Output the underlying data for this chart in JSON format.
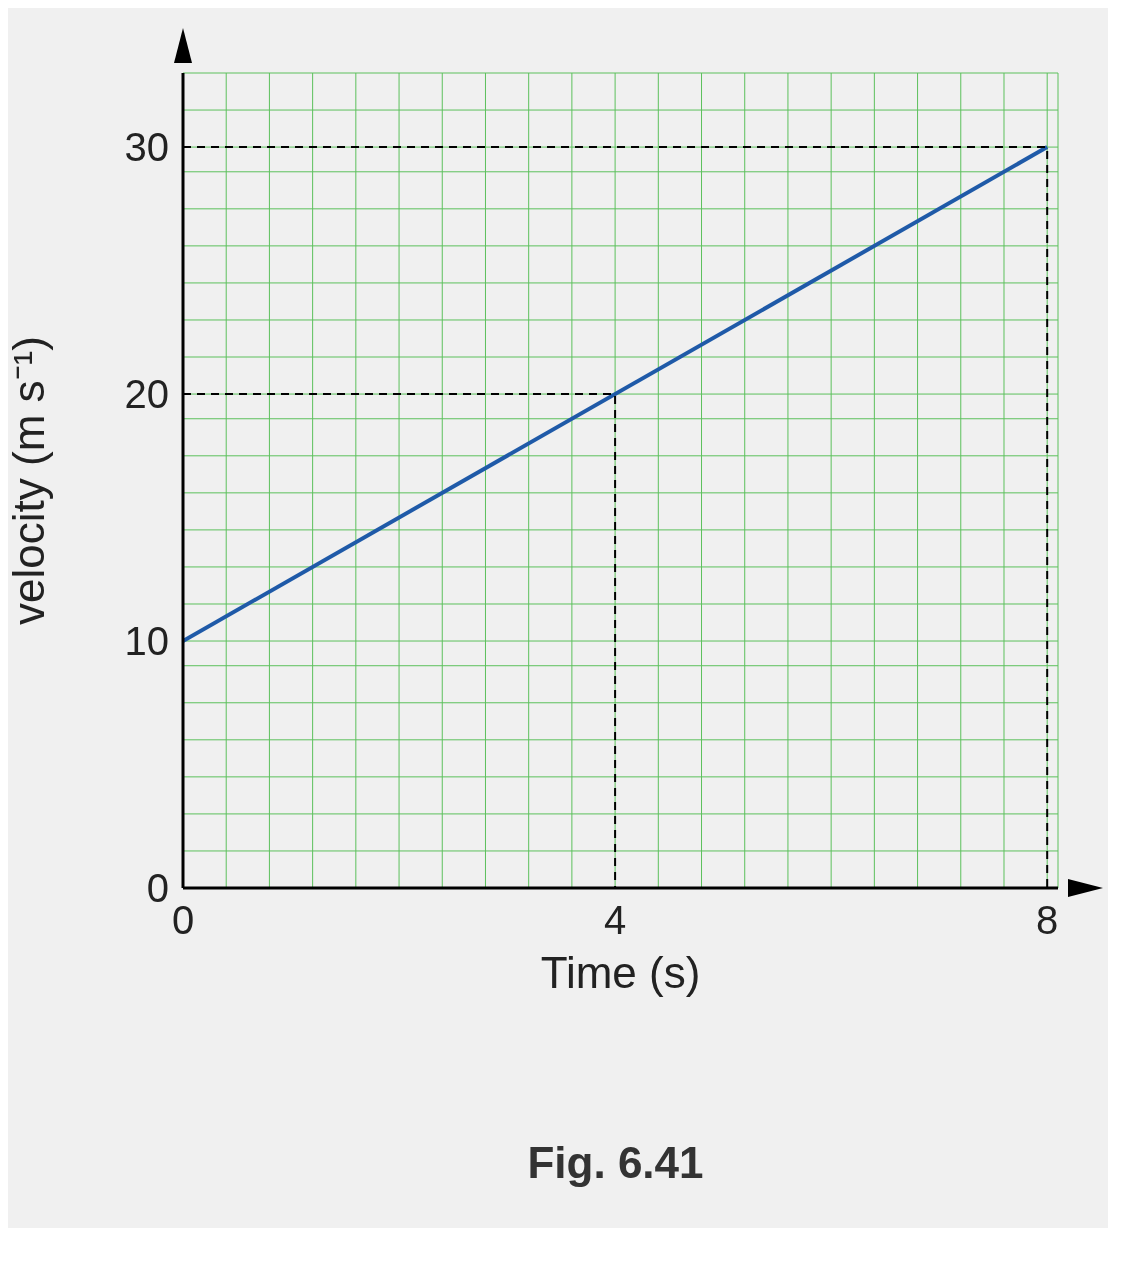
{
  "chart_data": {
    "type": "line",
    "xlabel": "Time (s)",
    "ylabel": "velocity (m s⁻¹)",
    "annotations": [
      "Fig. 6.41"
    ],
    "xlim": [
      0,
      8.1
    ],
    "ylim": [
      0,
      33
    ],
    "xticks": [
      0,
      {
        "value": 0.4,
        "label": null
      },
      {
        "value": 0.8,
        "label": null
      },
      {
        "value": 1.2,
        "label": null
      },
      {
        "value": 1.6,
        "label": null
      },
      {
        "value": 2,
        "label": null
      },
      {
        "value": 2.4,
        "label": null
      },
      {
        "value": 2.8,
        "label": null
      },
      {
        "value": 3.2,
        "label": null
      },
      {
        "value": 3.6,
        "label": null
      },
      4,
      {
        "value": 4.4,
        "label": null
      },
      {
        "value": 4.8,
        "label": null
      },
      {
        "value": 5.2,
        "label": null
      },
      {
        "value": 5.6,
        "label": null
      },
      {
        "value": 6,
        "label": null
      },
      {
        "value": 6.4,
        "label": null
      },
      {
        "value": 6.8,
        "label": null
      },
      {
        "value": 7.2,
        "label": null
      },
      {
        "value": 7.6,
        "label": null
      },
      8
    ],
    "yticks": [
      0,
      {
        "value": 1.5,
        "label": null
      },
      {
        "value": 3,
        "label": null
      },
      {
        "value": 4.5,
        "label": null
      },
      {
        "value": 6,
        "label": null
      },
      {
        "value": 7.5,
        "label": null
      },
      {
        "value": 9,
        "label": null
      },
      10,
      {
        "value": 11.5,
        "label": null
      },
      {
        "value": 13,
        "label": null
      },
      {
        "value": 14.5,
        "label": null
      },
      {
        "value": 16,
        "label": null
      },
      {
        "value": 17.5,
        "label": null
      },
      {
        "value": 19,
        "label": null
      },
      20,
      {
        "value": 21.5,
        "label": null
      },
      {
        "value": 23,
        "label": null
      },
      {
        "value": 24.5,
        "label": null
      },
      {
        "value": 26,
        "label": null
      },
      {
        "value": 27.5,
        "label": null
      },
      {
        "value": 29,
        "label": null
      },
      30,
      {
        "value": 31.5,
        "label": null
      },
      {
        "value": 33,
        "label": null
      }
    ],
    "grid": true,
    "marker": "none",
    "series": [
      {
        "color": "#1f5aa8",
        "x": [
          0,
          8
        ],
        "values": [
          10,
          30
        ],
        "line_style": "solid"
      },
      {
        "color": "#000000",
        "x": [
          0,
          4,
          4
        ],
        "values": [
          20,
          20,
          0
        ],
        "line_style": "dashed"
      },
      {
        "color": "#000000",
        "x": [
          0,
          8,
          8
        ],
        "values": [
          30,
          30,
          0
        ],
        "line_style": "dashed"
      }
    ]
  }
}
